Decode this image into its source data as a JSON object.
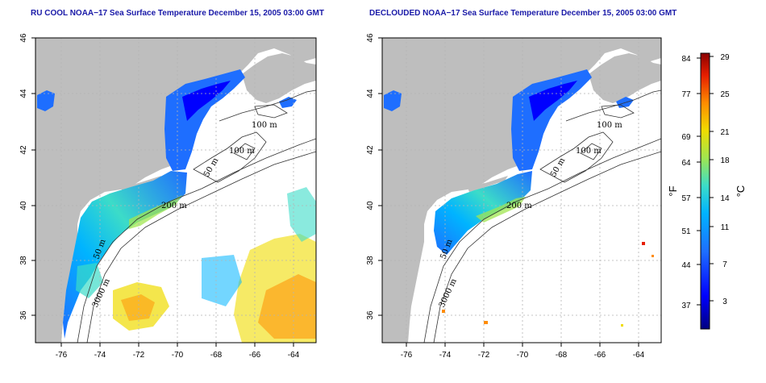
{
  "left_panel": {
    "title": "RU COOL NOAA−17 Sea Surface Temperature December 15, 2005 03:00 GMT"
  },
  "right_panel": {
    "title": "DECLOUDED NOAA−17 Sea Surface Temperature December 15, 2005 03:00 GMT"
  },
  "axes": {
    "lon_labels": [
      "-76",
      "-74",
      "-72",
      "-70",
      "-68",
      "-66",
      "-64"
    ],
    "lat_labels": [
      "36",
      "38",
      "40",
      "42",
      "44",
      "46"
    ]
  },
  "contour_labels": {
    "left": [
      "100 m",
      "100 m",
      "50 m",
      "200 m",
      "50 m",
      "3000 m"
    ],
    "right": [
      "100 m",
      "100 m",
      "50 m",
      "200 m",
      "50 m",
      "3000 m"
    ]
  },
  "colorbar": {
    "fahrenheit_labels": [
      "84",
      "77",
      "69",
      "64",
      "57",
      "51",
      "44",
      "37"
    ],
    "celsius_labels": [
      "29",
      "25",
      "21",
      "18",
      "14",
      "11",
      "7",
      "3"
    ],
    "unit_f": "°F",
    "unit_c": "°C",
    "colors": [
      "#000080",
      "#0000ff",
      "#1e6eff",
      "#00b4ff",
      "#3cdcc8",
      "#a0e650",
      "#f0dc00",
      "#ff8c00",
      "#e61e00",
      "#8b0000"
    ]
  },
  "colors": {
    "land": "#bebebe",
    "ocean": "#ffffff",
    "grid": "#b4b4b4",
    "contour": "#333333",
    "title": "#1a1aa8"
  }
}
